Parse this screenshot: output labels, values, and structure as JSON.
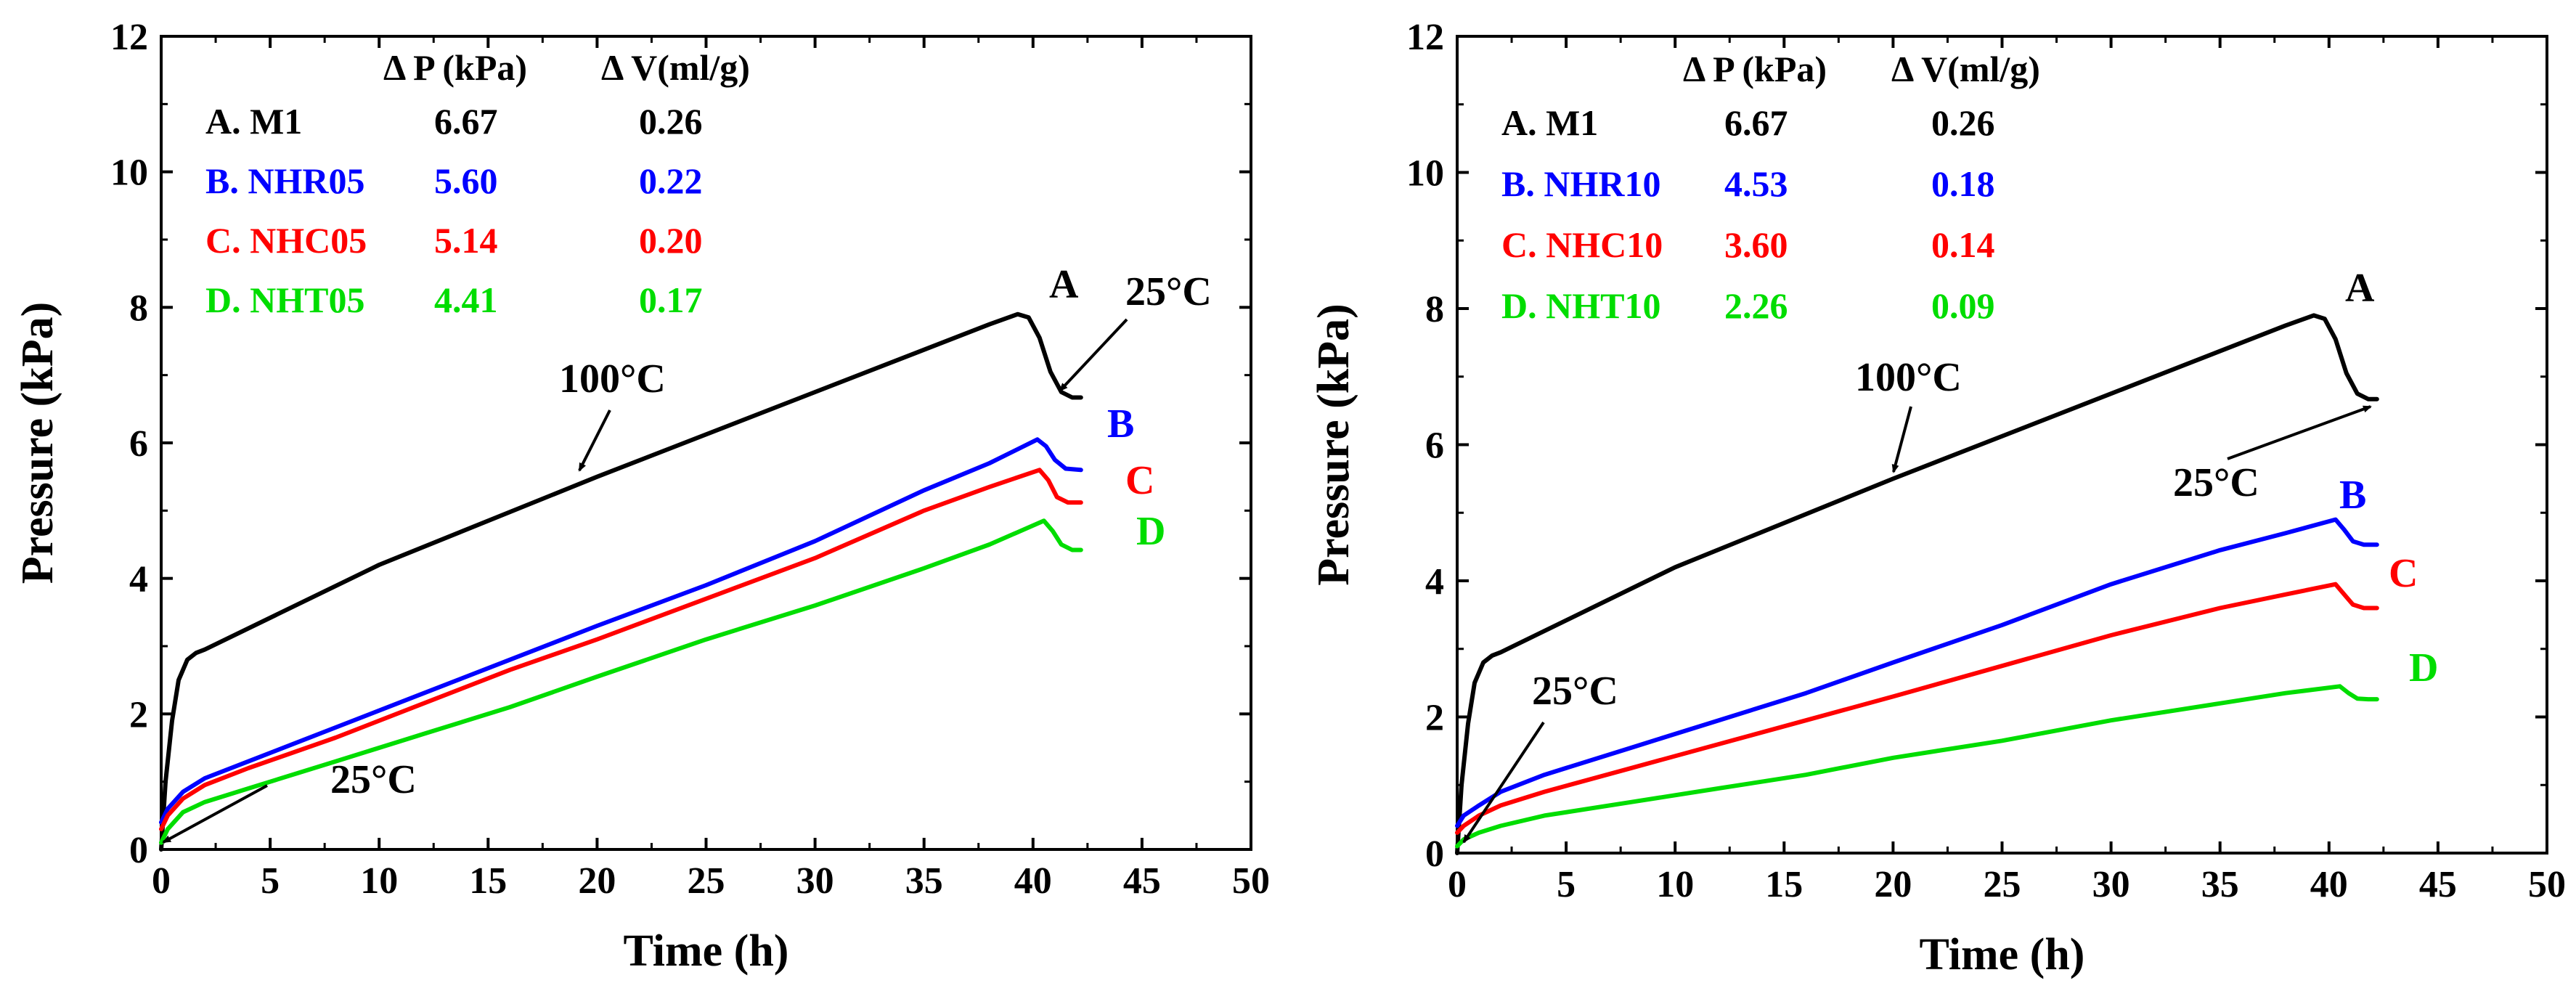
{
  "chart_data": [
    {
      "type": "line",
      "xlabel": "Time (h)",
      "ylabel": "Pressure (kPa)",
      "xlim": [
        0,
        50
      ],
      "ylim": [
        0,
        12
      ],
      "xticks": [
        "0",
        "5",
        "10",
        "15",
        "20",
        "25",
        "30",
        "35",
        "40",
        "45",
        "50"
      ],
      "yticks": [
        "0",
        "2",
        "4",
        "6",
        "8",
        "10",
        "12"
      ],
      "legend_headers": [
        "Δ P (kPa)",
        "Δ V(ml/g)"
      ],
      "legend": [
        {
          "label": "A. M1",
          "dp": "6.67",
          "dv": "0.26",
          "color": "#000000"
        },
        {
          "label": "B. NHR05",
          "dp": "5.60",
          "dv": "0.22",
          "color": "#0000ff"
        },
        {
          "label": "C. NHC05",
          "dp": "5.14",
          "dv": "0.20",
          "color": "#ff0000"
        },
        {
          "label": "D. NHT05",
          "dp": "4.41",
          "dv": "0.17",
          "color": "#00dd00"
        }
      ],
      "series": [
        {
          "name": "A",
          "color": "#000000",
          "x": [
            0,
            0.2,
            0.5,
            0.8,
            1.2,
            1.6,
            2,
            10,
            20,
            30,
            38,
            39.3,
            39.8,
            40.3,
            40.8,
            41.3,
            41.8,
            42.2
          ],
          "y": [
            0,
            1.0,
            1.9,
            2.5,
            2.8,
            2.9,
            2.95,
            4.2,
            5.5,
            6.75,
            7.75,
            7.9,
            7.85,
            7.55,
            7.05,
            6.75,
            6.67,
            6.67
          ]
        },
        {
          "name": "B",
          "color": "#0000ff",
          "x": [
            0,
            0.3,
            1,
            2,
            4,
            8,
            12,
            16,
            20,
            25,
            30,
            35,
            38,
            40.2,
            40.6,
            41,
            41.5,
            42.2
          ],
          "y": [
            0.4,
            0.6,
            0.85,
            1.05,
            1.3,
            1.8,
            2.3,
            2.8,
            3.3,
            3.9,
            4.55,
            5.3,
            5.7,
            6.05,
            5.95,
            5.75,
            5.62,
            5.6
          ]
        },
        {
          "name": "C",
          "color": "#ff0000",
          "x": [
            0,
            0.3,
            1,
            2,
            4,
            8,
            12,
            16,
            20,
            25,
            30,
            35,
            38,
            40.3,
            40.7,
            41.1,
            41.6,
            42.2
          ],
          "y": [
            0.3,
            0.5,
            0.75,
            0.95,
            1.2,
            1.65,
            2.15,
            2.65,
            3.1,
            3.7,
            4.3,
            5.0,
            5.35,
            5.6,
            5.45,
            5.2,
            5.12,
            5.12
          ]
        },
        {
          "name": "D",
          "color": "#00dd00",
          "x": [
            0,
            0.3,
            1,
            2,
            4,
            8,
            12,
            16,
            20,
            25,
            30,
            35,
            38,
            40.5,
            40.9,
            41.3,
            41.8,
            42.2
          ],
          "y": [
            0.1,
            0.3,
            0.55,
            0.7,
            0.9,
            1.3,
            1.7,
            2.1,
            2.55,
            3.1,
            3.6,
            4.15,
            4.5,
            4.85,
            4.7,
            4.5,
            4.42,
            4.42
          ]
        }
      ],
      "annotations": [
        {
          "text": "A",
          "color": "#000000"
        },
        {
          "text": "B",
          "color": "#0000ff"
        },
        {
          "text": "C",
          "color": "#ff0000"
        },
        {
          "text": "D",
          "color": "#00dd00"
        },
        {
          "text": "100°C",
          "color": "#000000"
        },
        {
          "text": "25°C",
          "color": "#000000"
        },
        {
          "text": "25°C",
          "color": "#000000"
        }
      ]
    },
    {
      "type": "line",
      "xlabel": "Time (h)",
      "ylabel": "Pressure (kPa)",
      "xlim": [
        0,
        50
      ],
      "ylim": [
        0,
        12
      ],
      "xticks": [
        "0",
        "5",
        "10",
        "15",
        "20",
        "25",
        "30",
        "35",
        "40",
        "45",
        "50"
      ],
      "yticks": [
        "0",
        "2",
        "4",
        "6",
        "8",
        "10",
        "12"
      ],
      "legend_headers": [
        "Δ P (kPa)",
        "Δ V(ml/g)"
      ],
      "legend": [
        {
          "label": "A. M1",
          "dp": "6.67",
          "dv": "0.26",
          "color": "#000000"
        },
        {
          "label": "B. NHR10",
          "dp": "4.53",
          "dv": "0.18",
          "color": "#0000ff"
        },
        {
          "label": "C. NHC10",
          "dp": "3.60",
          "dv": "0.14",
          "color": "#ff0000"
        },
        {
          "label": "D. NHT10",
          "dp": "2.26",
          "dv": "0.09",
          "color": "#00dd00"
        }
      ],
      "series": [
        {
          "name": "A",
          "color": "#000000",
          "x": [
            0,
            0.2,
            0.5,
            0.8,
            1.2,
            1.6,
            2,
            10,
            20,
            30,
            38,
            39.3,
            39.8,
            40.3,
            40.8,
            41.3,
            41.8,
            42.2
          ],
          "y": [
            0,
            1.0,
            1.9,
            2.5,
            2.8,
            2.9,
            2.95,
            4.2,
            5.5,
            6.75,
            7.75,
            7.9,
            7.85,
            7.55,
            7.05,
            6.75,
            6.67,
            6.67
          ]
        },
        {
          "name": "B",
          "color": "#0000ff",
          "x": [
            0,
            0.3,
            1,
            2,
            4,
            8,
            12,
            16,
            20,
            25,
            30,
            35,
            38,
            40.3,
            40.7,
            41.1,
            41.6,
            42.2
          ],
          "y": [
            0.4,
            0.55,
            0.7,
            0.9,
            1.15,
            1.55,
            1.95,
            2.35,
            2.8,
            3.35,
            3.95,
            4.45,
            4.7,
            4.9,
            4.75,
            4.58,
            4.53,
            4.53
          ]
        },
        {
          "name": "C",
          "color": "#ff0000",
          "x": [
            0,
            0.3,
            1,
            2,
            4,
            8,
            12,
            16,
            20,
            25,
            30,
            35,
            38,
            40.3,
            40.7,
            41.1,
            41.6,
            42.2
          ],
          "y": [
            0.3,
            0.4,
            0.55,
            0.7,
            0.9,
            1.25,
            1.6,
            1.95,
            2.3,
            2.75,
            3.2,
            3.6,
            3.8,
            3.95,
            3.8,
            3.65,
            3.6,
            3.6
          ]
        },
        {
          "name": "D",
          "color": "#00dd00",
          "x": [
            0,
            0.3,
            1,
            2,
            4,
            8,
            12,
            16,
            20,
            25,
            30,
            35,
            38,
            40.5,
            40.9,
            41.3,
            41.8,
            42.2
          ],
          "y": [
            0.1,
            0.2,
            0.3,
            0.4,
            0.55,
            0.75,
            0.95,
            1.15,
            1.4,
            1.65,
            1.95,
            2.2,
            2.35,
            2.45,
            2.35,
            2.27,
            2.26,
            2.26
          ]
        }
      ],
      "annotations": [
        {
          "text": "A",
          "color": "#000000"
        },
        {
          "text": "B",
          "color": "#0000ff"
        },
        {
          "text": "C",
          "color": "#ff0000"
        },
        {
          "text": "D",
          "color": "#00dd00"
        },
        {
          "text": "100°C",
          "color": "#000000"
        },
        {
          "text": "25°C",
          "color": "#000000"
        },
        {
          "text": "25°C",
          "color": "#000000"
        }
      ]
    }
  ]
}
